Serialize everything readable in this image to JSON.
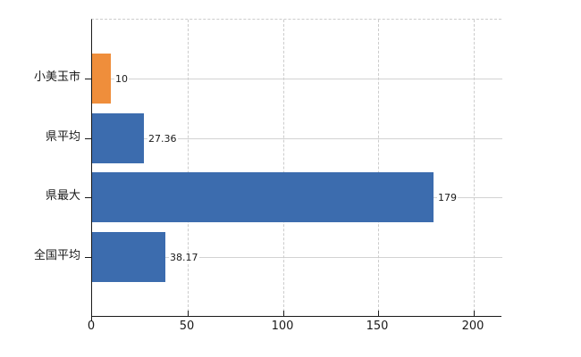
{
  "chart_data": {
    "type": "bar",
    "orientation": "horizontal",
    "title": "",
    "xlabel": "",
    "ylabel": "",
    "categories": [
      "小美玉市",
      "県平均",
      "県最大",
      "全国平均"
    ],
    "values": [
      10,
      27.36,
      179,
      38.17
    ],
    "value_labels": [
      "10",
      "27.36",
      "179",
      "38.17"
    ],
    "bar_colors": [
      "#ef8e3b",
      "#3c6cae",
      "#3c6cae",
      "#3c6cae"
    ],
    "xticks": [
      0,
      50,
      100,
      150,
      200
    ],
    "xtick_labels": [
      "0",
      "50",
      "100",
      "150",
      "200"
    ],
    "xlim": [
      0,
      214.5
    ],
    "grid": {
      "vertical": "dashed",
      "horizontal": "solid",
      "color": "#cccccc"
    },
    "legend": "none",
    "colors": {
      "axis": "#1a1a1a",
      "background": "#ffffff",
      "highlight_bar": "#ef8e3b",
      "default_bar": "#3c6cae"
    }
  }
}
